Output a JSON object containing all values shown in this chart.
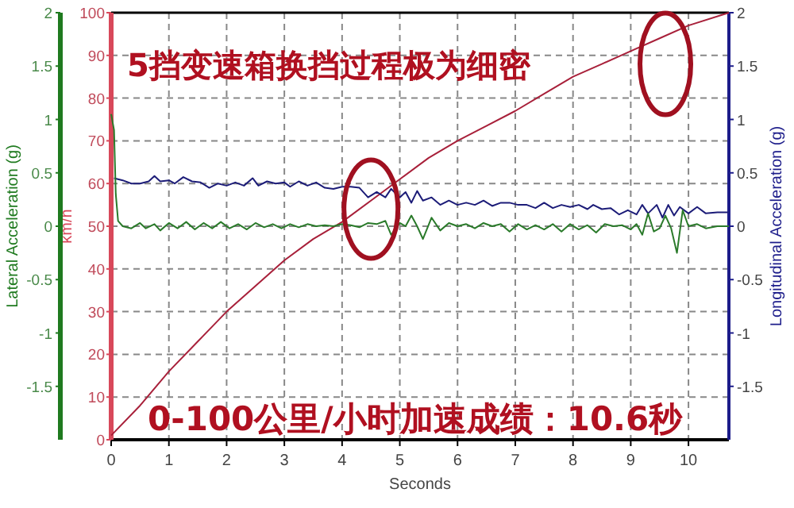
{
  "chart_data": {
    "type": "line",
    "annotations": [
      "5挡变速箱换挡过程极为细密",
      "0-100公里/小时加速成绩：10.6秒"
    ],
    "xlabel": "Seconds",
    "ylabel": "km/h",
    "y2label": "Longitudinal Acceleration (g)",
    "y3label": "Lateral Acceleration (g)",
    "xlim": [
      0,
      10.7
    ],
    "xticks": [
      0,
      1,
      2,
      3,
      4,
      5,
      6,
      7,
      8,
      9,
      10
    ],
    "ylim": [
      0,
      100
    ],
    "yticks": [
      0,
      10,
      20,
      30,
      40,
      50,
      60,
      70,
      80,
      90,
      100
    ],
    "y2lim": [
      -2,
      2
    ],
    "y2ticks": [
      -1.5,
      -1,
      -0.5,
      0,
      0.5,
      1,
      1.5,
      2
    ],
    "y3lim": [
      -2,
      2
    ],
    "y3ticks": [
      -1.5,
      -1,
      -0.5,
      0,
      0.5,
      1,
      1.5,
      2
    ],
    "grid": true,
    "series": [
      {
        "color": "#a8203a",
        "axis": "y",
        "x": [
          0,
          0.5,
          1,
          1.5,
          2,
          2.5,
          3,
          3.5,
          4,
          4.5,
          5,
          5.5,
          6,
          6.5,
          7,
          7.5,
          8,
          8.5,
          9,
          9.5,
          10,
          10.7
        ],
        "values": [
          1,
          8,
          16,
          23,
          30,
          36,
          42,
          47,
          51,
          56,
          61,
          66,
          70,
          73.5,
          77,
          81,
          85,
          88,
          91,
          94,
          97,
          100
        ]
      },
      {
        "color": "#1c1c78",
        "axis": "y2",
        "x": [
          0.05,
          0.2,
          0.35,
          0.5,
          0.65,
          0.75,
          0.85,
          1.0,
          1.1,
          1.25,
          1.4,
          1.55,
          1.7,
          1.85,
          2.0,
          2.15,
          2.3,
          2.45,
          2.55,
          2.7,
          2.85,
          3.0,
          3.1,
          3.25,
          3.4,
          3.55,
          3.7,
          3.85,
          4.0,
          4.15,
          4.3,
          4.45,
          4.6,
          4.75,
          4.85,
          5.0,
          5.1,
          5.2,
          5.3,
          5.4,
          5.55,
          5.7,
          5.85,
          6.0,
          6.15,
          6.3,
          6.45,
          6.6,
          6.75,
          6.9,
          7.05,
          7.2,
          7.35,
          7.5,
          7.65,
          7.8,
          7.95,
          8.1,
          8.25,
          8.35,
          8.5,
          8.65,
          8.8,
          8.95,
          9.1,
          9.2,
          9.3,
          9.45,
          9.55,
          9.65,
          9.75,
          9.85,
          10.0,
          10.15,
          10.3,
          10.5,
          10.7
        ],
        "values": [
          0.45,
          0.43,
          0.4,
          0.4,
          0.42,
          0.47,
          0.42,
          0.43,
          0.4,
          0.46,
          0.42,
          0.41,
          0.36,
          0.4,
          0.38,
          0.41,
          0.38,
          0.45,
          0.38,
          0.42,
          0.4,
          0.41,
          0.37,
          0.42,
          0.38,
          0.41,
          0.36,
          0.35,
          0.37,
          0.37,
          0.36,
          0.27,
          0.32,
          0.27,
          0.35,
          0.27,
          0.32,
          0.22,
          0.33,
          0.24,
          0.27,
          0.2,
          0.24,
          0.2,
          0.22,
          0.2,
          0.24,
          0.19,
          0.22,
          0.22,
          0.2,
          0.2,
          0.17,
          0.22,
          0.17,
          0.2,
          0.18,
          0.2,
          0.16,
          0.2,
          0.16,
          0.17,
          0.11,
          0.15,
          0.11,
          0.2,
          0.12,
          0.2,
          0.08,
          0.2,
          0.1,
          0.18,
          0.12,
          0.18,
          0.12,
          0.13,
          0.13
        ]
      },
      {
        "color": "#2a7a2a",
        "axis": "y3",
        "x": [
          0,
          0.05,
          0.08,
          0.12,
          0.2,
          0.35,
          0.5,
          0.6,
          0.75,
          0.85,
          1.0,
          1.15,
          1.3,
          1.45,
          1.6,
          1.75,
          1.9,
          2.05,
          2.2,
          2.35,
          2.5,
          2.65,
          2.8,
          2.95,
          3.1,
          3.25,
          3.4,
          3.55,
          3.7,
          3.85,
          4.0,
          4.15,
          4.3,
          4.45,
          4.6,
          4.75,
          4.85,
          5.0,
          5.1,
          5.2,
          5.3,
          5.4,
          5.55,
          5.7,
          5.85,
          6.0,
          6.15,
          6.3,
          6.45,
          6.6,
          6.75,
          6.9,
          7.05,
          7.2,
          7.35,
          7.5,
          7.65,
          7.8,
          7.95,
          8.1,
          8.25,
          8.4,
          8.55,
          8.7,
          8.85,
          9.0,
          9.1,
          9.2,
          9.3,
          9.4,
          9.5,
          9.6,
          9.7,
          9.8,
          9.9,
          10.0,
          10.15,
          10.3,
          10.5,
          10.7
        ],
        "values": [
          1.05,
          0.9,
          0.3,
          0.05,
          0.0,
          -0.02,
          0.03,
          -0.02,
          0.02,
          -0.04,
          0.03,
          -0.02,
          0.04,
          -0.03,
          0.03,
          -0.02,
          0.04,
          -0.02,
          0.02,
          -0.03,
          0.03,
          -0.01,
          0.02,
          -0.02,
          0.02,
          -0.01,
          0.02,
          0.0,
          0.01,
          0.0,
          0.02,
          0.01,
          -0.01,
          0.03,
          0.02,
          0.05,
          -0.08,
          0.03,
          0.0,
          0.1,
          0.0,
          -0.12,
          0.08,
          -0.04,
          0.03,
          0.0,
          0.02,
          -0.02,
          0.03,
          0.0,
          0.02,
          -0.05,
          0.02,
          -0.03,
          0.01,
          -0.03,
          0.02,
          -0.05,
          0.02,
          -0.03,
          0.01,
          -0.06,
          0.02,
          0.0,
          0.01,
          -0.03,
          0.02,
          -0.08,
          0.12,
          -0.05,
          -0.02,
          0.1,
          -0.02,
          -0.25,
          0.15,
          0.0,
          0.02,
          -0.02,
          0.0,
          0.0
        ]
      }
    ]
  }
}
